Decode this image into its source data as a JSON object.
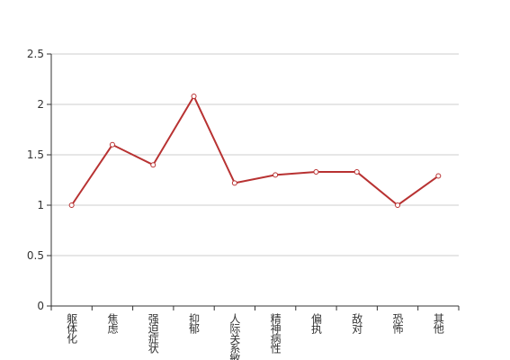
{
  "chart_data": {
    "type": "line",
    "categories": [
      "躯体化",
      "焦虑",
      "强迫症状",
      "抑郁",
      "人际关系敏感",
      "精神病性",
      "偏执",
      "敌对",
      "恐怖",
      "其他"
    ],
    "series": [
      {
        "color": "#b83232",
        "values": [
          1.0,
          1.6,
          1.4,
          2.08,
          1.22,
          1.3,
          1.33,
          1.33,
          1.0,
          1.29
        ]
      }
    ],
    "ylim": [
      0,
      2.5
    ],
    "yticks": [
      0,
      0.5,
      1,
      1.5,
      2,
      2.5
    ],
    "grid": true
  }
}
